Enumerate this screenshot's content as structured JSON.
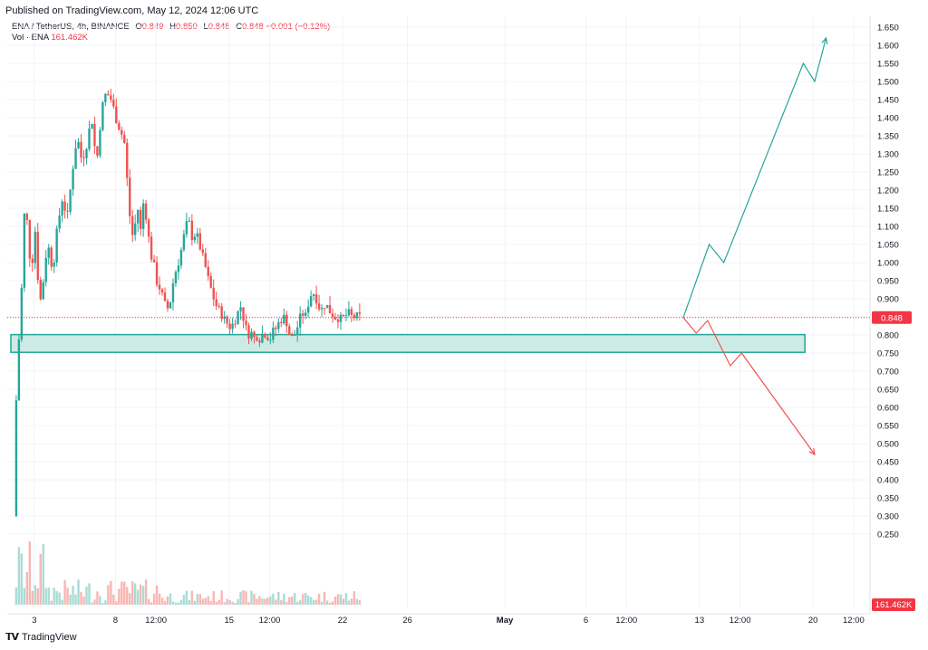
{
  "header": {
    "published": "Published on TradingView.com, May 12, 2024 12:06 UTC"
  },
  "legend": {
    "symbol": "ENA / TetherUS, 4h, BINANCE",
    "o_label": "O",
    "o": "0.849",
    "h_label": "H",
    "h": "0.850",
    "l_label": "L",
    "l": "0.848",
    "c_label": "C",
    "c": "0.848",
    "change": "−0.001 (−0.12%)",
    "vol_label": "Vol · ENA",
    "vol": "161.462K"
  },
  "footer": {
    "brand": "TradingView"
  },
  "colors": {
    "up": "#26a69a",
    "down": "#ef5350",
    "zone_fill": "#cdebe6",
    "zone_stroke": "#26a69a",
    "last_price": "#f23645"
  },
  "chart_data": {
    "type": "candlestick",
    "symbol": "ENA / TetherUS",
    "interval": "4h",
    "exchange": "BINANCE",
    "ylim": [
      0.18,
      1.66
    ],
    "y_ticks": [
      "1.650",
      "1.600",
      "1.550",
      "1.500",
      "1.450",
      "1.400",
      "1.350",
      "1.300",
      "1.250",
      "1.200",
      "1.150",
      "1.100",
      "1.050",
      "1.000",
      "0.950",
      "0.900",
      "0.850",
      "0.800",
      "0.750",
      "0.700",
      "0.650",
      "0.600",
      "0.550",
      "0.500",
      "0.450",
      "0.400",
      "0.350",
      "0.300",
      "0.250"
    ],
    "x_ticks": [
      {
        "label": "3",
        "t": 0.5
      },
      {
        "label": "8",
        "t": 5.5
      },
      {
        "label": "12:00",
        "t": 8
      },
      {
        "label": "15",
        "t": 12.5
      },
      {
        "label": "12:00",
        "t": 15
      },
      {
        "label": "22",
        "t": 19.5
      },
      {
        "label": "26",
        "t": 23.5
      },
      {
        "label": "May",
        "t": 29.5
      },
      {
        "label": "6",
        "t": 34.5
      },
      {
        "label": "12:00",
        "t": 37
      },
      {
        "label": "13",
        "t": 41.5
      },
      {
        "label": "12:00",
        "t": 44
      },
      {
        "label": "20",
        "t": 48.5
      },
      {
        "label": "12:00",
        "t": 51
      }
    ],
    "last_price": {
      "value": 0.848,
      "label": "0.848"
    },
    "last_volume_label": "161.462K",
    "price_path": [
      [
        0.0,
        0.3
      ],
      [
        0.05,
        0.62
      ],
      [
        0.15,
        0.74
      ],
      [
        0.3,
        0.85
      ],
      [
        0.45,
        0.99
      ],
      [
        0.6,
        1.2
      ],
      [
        0.8,
        1.05
      ],
      [
        1.0,
        0.98
      ],
      [
        1.2,
        1.1
      ],
      [
        1.4,
        0.95
      ],
      [
        1.6,
        0.88
      ],
      [
        1.8,
        1.0
      ],
      [
        2.0,
        1.05
      ],
      [
        2.3,
        0.98
      ],
      [
        2.6,
        1.1
      ],
      [
        2.9,
        1.18
      ],
      [
        3.2,
        1.12
      ],
      [
        3.5,
        1.25
      ],
      [
        3.8,
        1.35
      ],
      [
        4.1,
        1.28
      ],
      [
        4.4,
        1.33
      ],
      [
        4.7,
        1.4
      ],
      [
        5.0,
        1.27
      ],
      [
        5.3,
        1.42
      ],
      [
        5.6,
        1.47
      ],
      [
        5.9,
        1.45
      ],
      [
        6.2,
        1.4
      ],
      [
        6.5,
        1.36
      ],
      [
        6.7,
        1.34
      ],
      [
        6.9,
        1.22
      ],
      [
        7.1,
        1.1
      ],
      [
        7.3,
        1.06
      ],
      [
        7.5,
        1.17
      ],
      [
        7.7,
        1.08
      ],
      [
        7.9,
        1.17
      ],
      [
        8.1,
        1.12
      ],
      [
        8.3,
        1.03
      ],
      [
        8.5,
        1.0
      ],
      [
        8.7,
        0.95
      ],
      [
        8.9,
        0.93
      ],
      [
        9.1,
        0.9
      ],
      [
        9.3,
        0.87
      ],
      [
        9.5,
        0.88
      ],
      [
        9.7,
        0.94
      ],
      [
        9.9,
        0.98
      ],
      [
        10.1,
        1.01
      ],
      [
        10.3,
        1.05
      ],
      [
        10.5,
        1.1
      ],
      [
        10.7,
        1.11
      ],
      [
        10.9,
        1.07
      ],
      [
        11.1,
        1.08
      ],
      [
        11.3,
        1.06
      ],
      [
        11.5,
        1.02
      ],
      [
        11.7,
        0.99
      ],
      [
        11.9,
        0.95
      ],
      [
        12.1,
        0.92
      ],
      [
        12.3,
        0.89
      ],
      [
        12.5,
        0.87
      ],
      [
        12.7,
        0.86
      ],
      [
        12.9,
        0.84
      ],
      [
        13.1,
        0.83
      ],
      [
        13.3,
        0.82
      ],
      [
        13.5,
        0.84
      ],
      [
        13.7,
        0.86
      ],
      [
        13.9,
        0.88
      ],
      [
        14.1,
        0.84
      ],
      [
        14.3,
        0.8
      ],
      [
        14.5,
        0.81
      ],
      [
        14.7,
        0.79
      ],
      [
        14.9,
        0.8
      ],
      [
        15.1,
        0.79
      ],
      [
        15.3,
        0.81
      ],
      [
        15.5,
        0.8
      ],
      [
        15.7,
        0.79
      ],
      [
        15.9,
        0.81
      ],
      [
        16.1,
        0.82
      ],
      [
        16.3,
        0.84
      ],
      [
        16.5,
        0.85
      ],
      [
        16.7,
        0.84
      ],
      [
        16.9,
        0.8
      ],
      [
        17.1,
        0.79
      ],
      [
        17.3,
        0.81
      ],
      [
        17.5,
        0.84
      ],
      [
        17.7,
        0.86
      ],
      [
        17.9,
        0.85
      ],
      [
        18.1,
        0.9
      ],
      [
        18.3,
        0.92
      ],
      [
        18.5,
        0.91
      ],
      [
        18.7,
        0.88
      ],
      [
        18.9,
        0.87
      ],
      [
        19.1,
        0.89
      ],
      [
        19.3,
        0.87
      ],
      [
        19.5,
        0.86
      ],
      [
        19.7,
        0.85
      ],
      [
        19.9,
        0.85
      ],
      [
        20.1,
        0.84
      ],
      [
        20.3,
        0.85
      ],
      [
        20.5,
        0.86
      ],
      [
        20.7,
        0.85
      ],
      [
        20.9,
        0.85
      ],
      [
        21.1,
        0.849
      ],
      [
        21.3,
        0.848
      ]
    ],
    "support_zone": {
      "low": 0.752,
      "high": 0.801,
      "from_t": 0.0,
      "to_t": 48.0
    },
    "projection_up": [
      [
        40.5,
        0.848
      ],
      [
        42.1,
        1.05
      ],
      [
        43.0,
        1.0
      ],
      [
        47.9,
        1.55
      ],
      [
        48.6,
        1.5
      ],
      [
        49.3,
        1.62
      ]
    ],
    "projection_down": [
      [
        40.5,
        0.848
      ],
      [
        41.3,
        0.805
      ],
      [
        42.0,
        0.84
      ],
      [
        43.4,
        0.715
      ],
      [
        44.1,
        0.75
      ],
      [
        48.6,
        0.47
      ]
    ]
  }
}
